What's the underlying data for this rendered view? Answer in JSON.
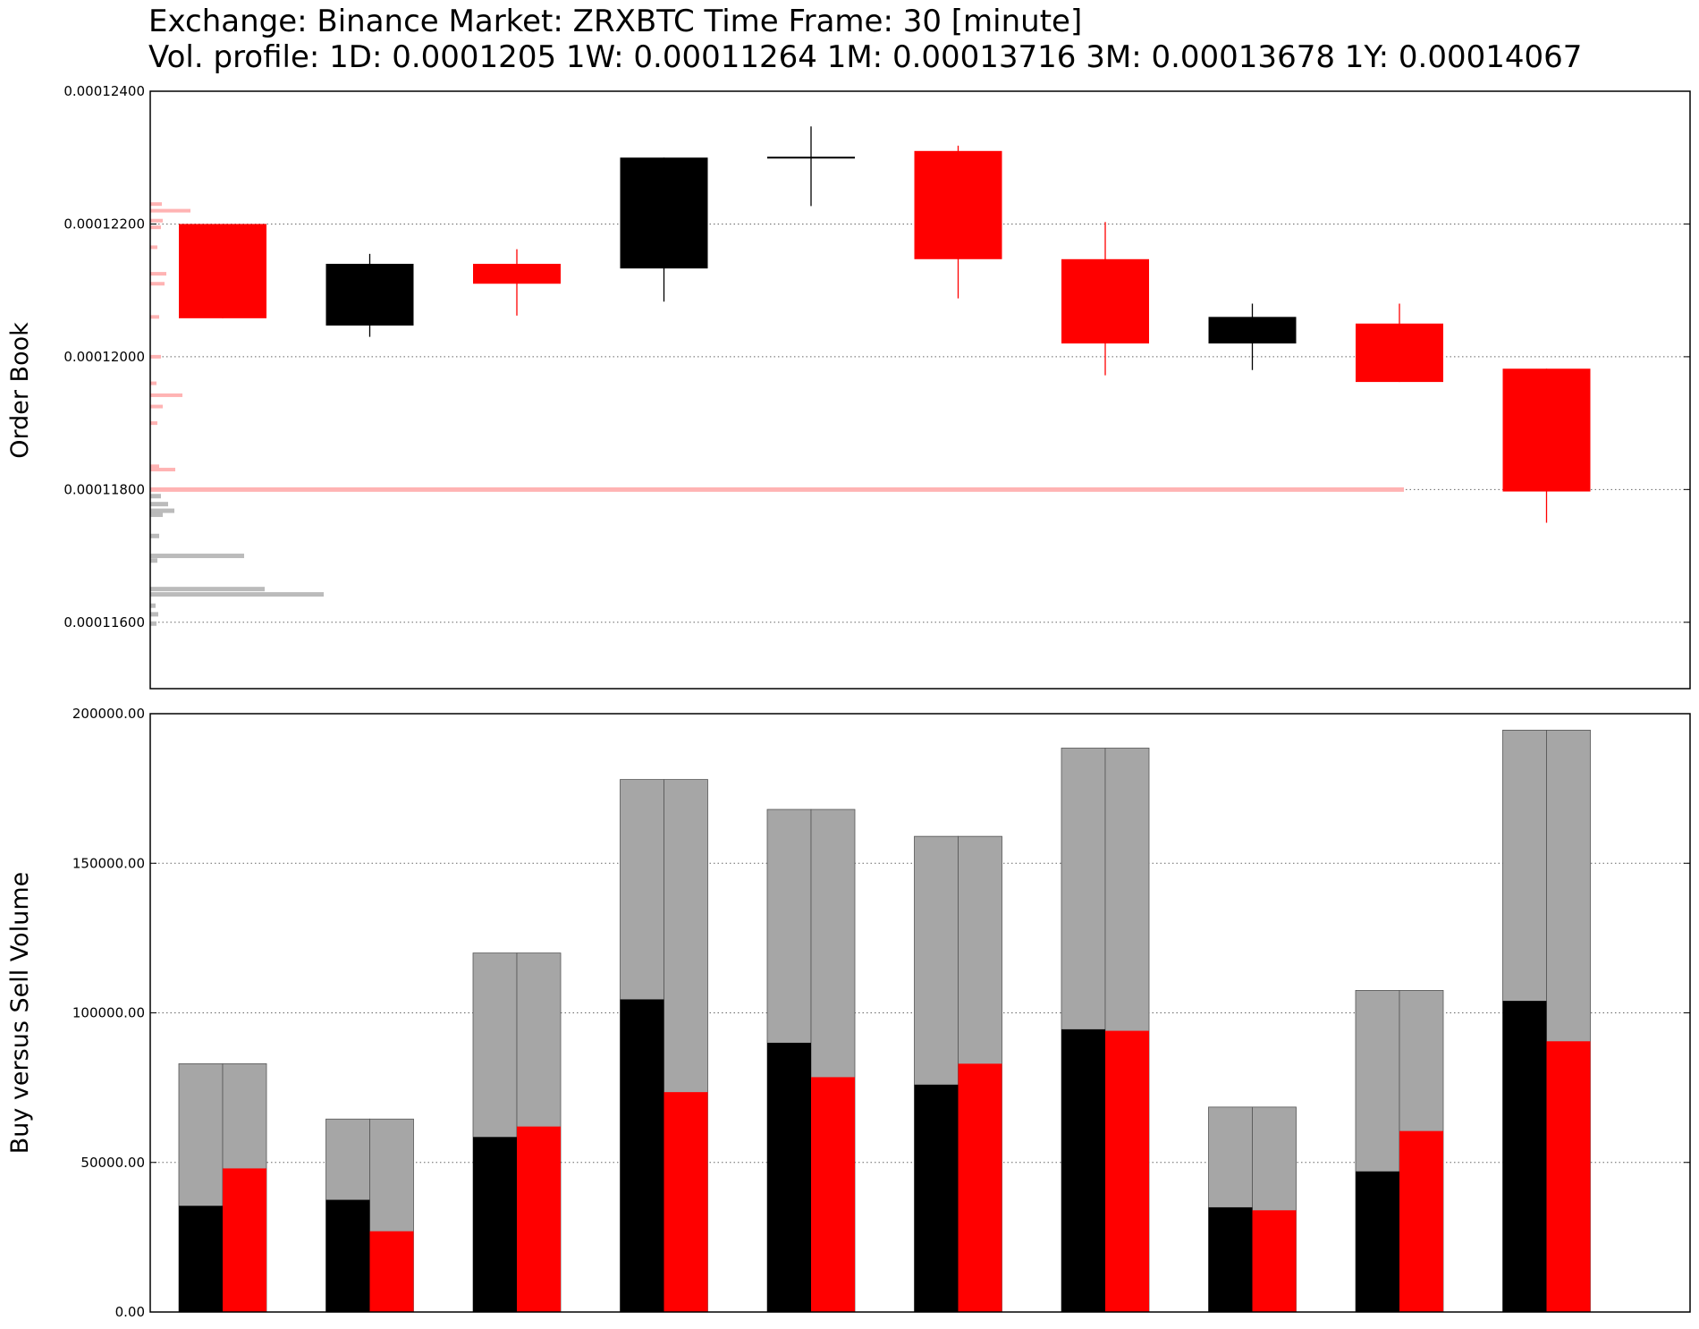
{
  "title": {
    "line1": "Exchange: Binance Market: ZRXBTC Time Frame: 30 [minute]",
    "line2": "Vol. profile: 1D: 0.0001205 1W: 0.00011264 1M: 0.00013716 3M: 0.00013678 1Y: 0.00014067"
  },
  "colors": {
    "up": "#000000",
    "down": "#ff0000",
    "ask_profile": "#ffb3b3",
    "bid_profile": "#bbbbbb",
    "total_volume": "#a6a6a6",
    "grid": "#666666"
  },
  "chart_data": [
    {
      "type": "candlestick",
      "ylabel": "Order Book",
      "ylim": [
        0.000115,
        0.000124
      ],
      "yticks": [
        0.000116,
        0.000118,
        0.00012,
        0.000122,
        0.000124
      ],
      "ytick_labels": [
        "0.00011600",
        "0.00011800",
        "0.00012000",
        "0.00012200",
        "0.00012400"
      ],
      "grid": "horizontal dotted",
      "candles": [
        {
          "open": 0.000122,
          "close": 0.00012058,
          "high": 0.000122,
          "low": 0.00012058,
          "color": "down"
        },
        {
          "open": 0.00012047,
          "close": 0.0001214,
          "high": 0.00012155,
          "low": 0.0001203,
          "color": "up"
        },
        {
          "open": 0.0001214,
          "close": 0.0001211,
          "high": 0.00012162,
          "low": 0.00012062,
          "color": "down"
        },
        {
          "open": 0.00012133,
          "close": 0.000123,
          "high": 0.000123,
          "low": 0.00012083,
          "color": "up"
        },
        {
          "open": 0.000123,
          "close": 0.000123,
          "high": 0.00012347,
          "low": 0.00012227,
          "color": "up"
        },
        {
          "open": 0.0001231,
          "close": 0.00012147,
          "high": 0.00012318,
          "low": 0.00012088,
          "color": "down"
        },
        {
          "open": 0.00012147,
          "close": 0.0001202,
          "high": 0.00012203,
          "low": 0.00011972,
          "color": "down"
        },
        {
          "open": 0.0001202,
          "close": 0.0001206,
          "high": 0.0001208,
          "low": 0.0001198,
          "color": "up"
        },
        {
          "open": 0.0001205,
          "close": 0.00011962,
          "high": 0.0001208,
          "low": 0.00011962,
          "color": "down"
        },
        {
          "open": 0.00011982,
          "close": 0.00011797,
          "high": 0.00011982,
          "low": 0.0001175,
          "color": "down"
        }
      ],
      "price_line": 0.000118,
      "ask_profile": [
        {
          "price": 0.0001223,
          "size": 13
        },
        {
          "price": 0.0001222,
          "size": 45
        },
        {
          "price": 0.00012205,
          "size": 14
        },
        {
          "price": 0.00012195,
          "size": 12
        },
        {
          "price": 0.00012165,
          "size": 8
        },
        {
          "price": 0.00012125,
          "size": 18
        },
        {
          "price": 0.0001211,
          "size": 16
        },
        {
          "price": 0.0001206,
          "size": 10
        },
        {
          "price": 0.00012,
          "size": 12
        },
        {
          "price": 0.0001196,
          "size": 7
        },
        {
          "price": 0.00011942,
          "size": 36
        },
        {
          "price": 0.00011925,
          "size": 14
        },
        {
          "price": 0.000119,
          "size": 8
        },
        {
          "price": 0.00011835,
          "size": 10
        },
        {
          "price": 0.0001183,
          "size": 28
        }
      ],
      "bid_profile": [
        {
          "price": 0.0001179,
          "size": 12
        },
        {
          "price": 0.00011778,
          "size": 20
        },
        {
          "price": 0.00011768,
          "size": 27
        },
        {
          "price": 0.00011762,
          "size": 14
        },
        {
          "price": 0.0001173,
          "size": 10
        },
        {
          "price": 0.000117,
          "size": 105
        },
        {
          "price": 0.00011693,
          "size": 8
        },
        {
          "price": 0.0001165,
          "size": 128
        },
        {
          "price": 0.00011642,
          "size": 194
        },
        {
          "price": 0.00011625,
          "size": 6
        },
        {
          "price": 0.00011612,
          "size": 9
        },
        {
          "price": 0.00011598,
          "size": 7
        }
      ]
    },
    {
      "type": "bar",
      "ylabel": "Buy versus Sell Volume",
      "ylim": [
        0,
        200000
      ],
      "yticks": [
        0,
        50000,
        100000,
        150000,
        200000
      ],
      "ytick_labels": [
        "0.00",
        "50000.00",
        "100000.00",
        "150000.00",
        "200000.00"
      ],
      "grid": "horizontal dotted",
      "series": [
        {
          "name": "",
          "values": [
            83000,
            64500,
            120000,
            178000,
            168000,
            159000,
            188500,
            68500,
            107500,
            194500
          ]
        },
        {
          "name": "",
          "values": [
            35500,
            37500,
            58500,
            104500,
            90000,
            76000,
            94500,
            35000,
            47000,
            104000
          ]
        },
        {
          "name": "",
          "values": [
            48000,
            27000,
            62000,
            73500,
            78500,
            83000,
            94000,
            34000,
            60500,
            90500
          ]
        }
      ]
    }
  ]
}
